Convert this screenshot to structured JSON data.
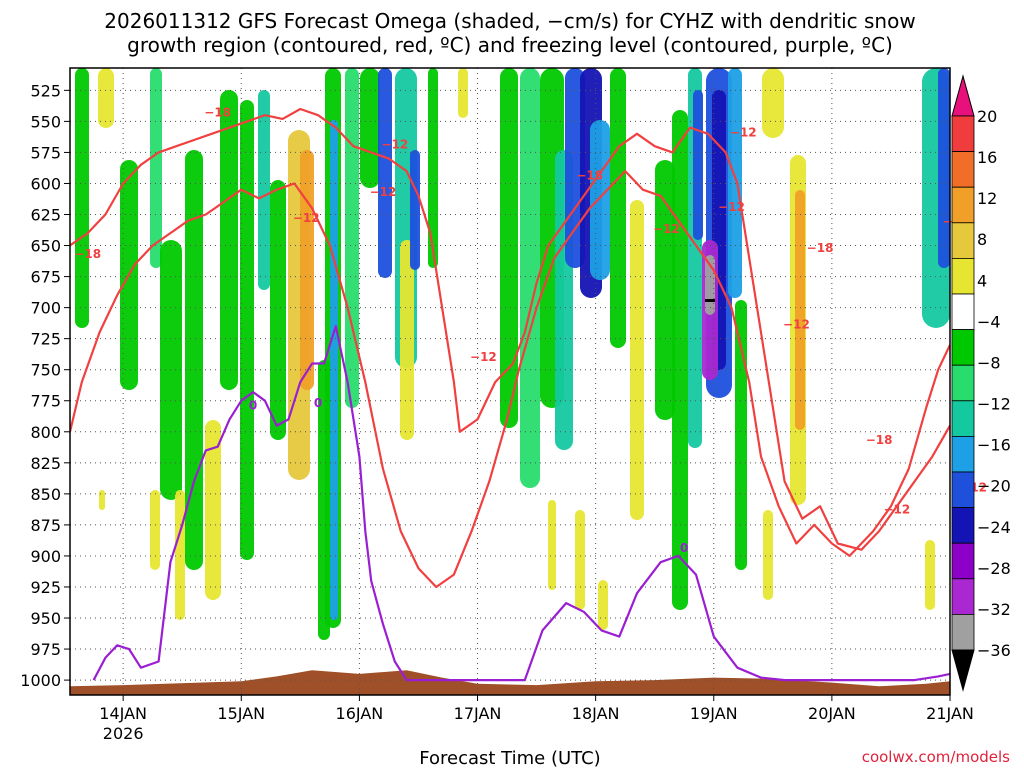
{
  "chart_data": {
    "type": "heatmap",
    "title_lines": [
      "2026011312 GFS Forecast Omega (shaded, −cm/s) for CYHZ with dendritic snow",
      "growth region (contoured, red, ºC) and freezing level (contoured, purple, ºC)"
    ],
    "xlabel": "Forecast Time (UTC)",
    "credit": "coolwx.com/models",
    "x_ticks": [
      {
        "label": "14JAN",
        "sub": "2026",
        "day": 14
      },
      {
        "label": "15JAN",
        "sub": "",
        "day": 15
      },
      {
        "label": "16JAN",
        "sub": "",
        "day": 16
      },
      {
        "label": "17JAN",
        "sub": "",
        "day": 17
      },
      {
        "label": "18JAN",
        "sub": "",
        "day": 18
      },
      {
        "label": "19JAN",
        "sub": "",
        "day": 19
      },
      {
        "label": "20JAN",
        "sub": "",
        "day": 20
      },
      {
        "label": "21JAN",
        "sub": "",
        "day": 21
      }
    ],
    "x_range_days": [
      13.55,
      21.0
    ],
    "y_ticks": [
      "525",
      "550",
      "575",
      "600",
      "625",
      "650",
      "675",
      "700",
      "725",
      "750",
      "775",
      "800",
      "825",
      "850",
      "875",
      "900",
      "925",
      "950",
      "975",
      "1000"
    ],
    "y_range_hpa": [
      507,
      1012
    ],
    "grid": true,
    "colorbar": {
      "labels": [
        "20",
        "16",
        "12",
        "8",
        "4",
        "−4",
        "−8",
        "−12",
        "−16",
        "−20",
        "−24",
        "−28",
        "−32",
        "−36"
      ],
      "colors": [
        "#e8117c",
        "#f03c3c",
        "#f06e28",
        "#f0a028",
        "#e6c83c",
        "#e6e632",
        "#ffffff",
        "#00c800",
        "#28dc6e",
        "#14c8a0",
        "#1ea0e6",
        "#1e50dc",
        "#1414b4",
        "#8c00c8",
        "#aa28d2",
        "#a0a0a0",
        "#000000"
      ]
    },
    "series": [
      {
        "name": "dendritic growth −12",
        "color": "#f04040",
        "points": [
          [
            13.55,
            650
          ],
          [
            13.7,
            640
          ],
          [
            13.85,
            625
          ],
          [
            14.0,
            600
          ],
          [
            14.15,
            585
          ],
          [
            14.3,
            575
          ],
          [
            14.45,
            570
          ],
          [
            14.6,
            565
          ],
          [
            14.75,
            560
          ],
          [
            14.9,
            555
          ],
          [
            15.05,
            550
          ],
          [
            15.2,
            545
          ],
          [
            15.35,
            548
          ],
          [
            15.5,
            540
          ],
          [
            15.65,
            545
          ],
          [
            15.8,
            555
          ],
          [
            15.95,
            570
          ],
          [
            16.1,
            575
          ],
          [
            16.25,
            580
          ],
          [
            16.4,
            590
          ],
          [
            16.5,
            610
          ],
          [
            16.6,
            640
          ],
          [
            16.7,
            700
          ],
          [
            16.8,
            760
          ],
          [
            16.85,
            800
          ],
          [
            17.0,
            790
          ],
          [
            17.15,
            760
          ],
          [
            17.3,
            745
          ],
          [
            17.4,
            720
          ],
          [
            17.5,
            680
          ],
          [
            17.6,
            650
          ],
          [
            17.75,
            630
          ],
          [
            17.9,
            610
          ],
          [
            18.05,
            590
          ],
          [
            18.2,
            570
          ],
          [
            18.35,
            560
          ],
          [
            18.5,
            570
          ],
          [
            18.65,
            575
          ],
          [
            18.8,
            555
          ],
          [
            18.95,
            560
          ],
          [
            19.1,
            575
          ],
          [
            19.2,
            600
          ],
          [
            19.3,
            660
          ],
          [
            19.4,
            720
          ],
          [
            19.5,
            780
          ],
          [
            19.6,
            840
          ],
          [
            19.75,
            870
          ],
          [
            19.9,
            860
          ],
          [
            20.05,
            890
          ],
          [
            20.25,
            895
          ],
          [
            20.4,
            880
          ],
          [
            20.55,
            860
          ],
          [
            20.7,
            840
          ],
          [
            20.85,
            820
          ],
          [
            21.0,
            795
          ]
        ]
      },
      {
        "name": "dendritic growth −18",
        "color": "#f04040",
        "points": [
          [
            13.55,
            800
          ],
          [
            13.65,
            760
          ],
          [
            13.8,
            720
          ],
          [
            13.95,
            690
          ],
          [
            14.1,
            665
          ],
          [
            14.25,
            650
          ],
          [
            14.4,
            640
          ],
          [
            14.55,
            630
          ],
          [
            14.7,
            625
          ],
          [
            14.85,
            615
          ],
          [
            15.0,
            605
          ],
          [
            15.15,
            612
          ],
          [
            15.3,
            605
          ],
          [
            15.45,
            600
          ],
          [
            15.6,
            620
          ],
          [
            15.75,
            650
          ],
          [
            15.9,
            700
          ],
          [
            16.05,
            760
          ],
          [
            16.2,
            830
          ],
          [
            16.35,
            880
          ],
          [
            16.5,
            910
          ],
          [
            16.65,
            925
          ],
          [
            16.8,
            915
          ],
          [
            16.95,
            880
          ],
          [
            17.1,
            840
          ],
          [
            17.25,
            790
          ],
          [
            17.35,
            750
          ],
          [
            17.5,
            700
          ],
          [
            17.65,
            660
          ],
          [
            17.8,
            640
          ],
          [
            17.95,
            620
          ],
          [
            18.1,
            605
          ],
          [
            18.25,
            590
          ],
          [
            18.4,
            605
          ],
          [
            18.55,
            610
          ],
          [
            18.7,
            630
          ],
          [
            18.85,
            650
          ],
          [
            19.0,
            670
          ],
          [
            19.15,
            700
          ],
          [
            19.3,
            760
          ],
          [
            19.4,
            820
          ],
          [
            19.55,
            860
          ],
          [
            19.7,
            890
          ],
          [
            19.85,
            875
          ],
          [
            20.0,
            890
          ],
          [
            20.15,
            900
          ],
          [
            20.35,
            880
          ],
          [
            20.5,
            860
          ],
          [
            20.65,
            830
          ],
          [
            20.8,
            780
          ],
          [
            20.9,
            750
          ],
          [
            21.0,
            730
          ]
        ]
      },
      {
        "name": "freezing level 0",
        "color": "#9b1fd2",
        "points": [
          [
            13.75,
            1000
          ],
          [
            13.85,
            982
          ],
          [
            13.95,
            972
          ],
          [
            14.05,
            975
          ],
          [
            14.15,
            990
          ],
          [
            14.3,
            985
          ],
          [
            14.4,
            905
          ],
          [
            14.5,
            875
          ],
          [
            14.6,
            840
          ],
          [
            14.7,
            815
          ],
          [
            14.8,
            812
          ],
          [
            14.9,
            790
          ],
          [
            15.0,
            775
          ],
          [
            15.1,
            768
          ],
          [
            15.2,
            775
          ],
          [
            15.3,
            795
          ],
          [
            15.4,
            790
          ],
          [
            15.5,
            760
          ],
          [
            15.6,
            745
          ],
          [
            15.7,
            745
          ],
          [
            15.8,
            715
          ],
          [
            15.9,
            760
          ],
          [
            16.0,
            820
          ],
          [
            16.05,
            880
          ],
          [
            16.1,
            920
          ],
          [
            16.2,
            955
          ],
          [
            16.3,
            985
          ],
          [
            16.4,
            1000
          ],
          [
            17.4,
            1000
          ],
          [
            17.55,
            960
          ],
          [
            17.75,
            938
          ],
          [
            17.9,
            945
          ],
          [
            18.05,
            960
          ],
          [
            18.2,
            965
          ],
          [
            18.35,
            930
          ],
          [
            18.55,
            905
          ],
          [
            18.7,
            900
          ],
          [
            18.85,
            915
          ],
          [
            19.0,
            965
          ],
          [
            19.2,
            990
          ],
          [
            19.4,
            998
          ],
          [
            19.6,
            1000
          ],
          [
            20.7,
            1000
          ],
          [
            20.9,
            997
          ],
          [
            21.0,
            995
          ]
        ]
      }
    ],
    "contour_labels": [
      {
        "text": "−18",
        "day": 13.7,
        "hpa": 660,
        "color": "#f04040"
      },
      {
        "text": "−18",
        "day": 14.8,
        "hpa": 546,
        "color": "#f04040"
      },
      {
        "text": "−12",
        "day": 15.55,
        "hpa": 631,
        "color": "#f04040"
      },
      {
        "text": "−12",
        "day": 16.3,
        "hpa": 572,
        "color": "#f04040"
      },
      {
        "text": "−12",
        "day": 16.2,
        "hpa": 610,
        "color": "#f04040"
      },
      {
        "text": "−12",
        "day": 17.05,
        "hpa": 743,
        "color": "#f04040"
      },
      {
        "text": "−18",
        "day": 17.95,
        "hpa": 597,
        "color": "#f04040"
      },
      {
        "text": "−12",
        "day": 18.6,
        "hpa": 640,
        "color": "#f04040"
      },
      {
        "text": "−12",
        "day": 19.25,
        "hpa": 562,
        "color": "#f04040"
      },
      {
        "text": "−12",
        "day": 19.15,
        "hpa": 622,
        "color": "#f04040"
      },
      {
        "text": "−18",
        "day": 19.9,
        "hpa": 655,
        "color": "#f04040"
      },
      {
        "text": "−12",
        "day": 19.7,
        "hpa": 717,
        "color": "#f04040"
      },
      {
        "text": "−18",
        "day": 20.4,
        "hpa": 810,
        "color": "#f04040"
      },
      {
        "text": "−12",
        "day": 20.55,
        "hpa": 866,
        "color": "#f04040"
      },
      {
        "text": "−18",
        "day": 21.05,
        "hpa": 634,
        "color": "#f04040"
      },
      {
        "text": "−12",
        "day": 21.2,
        "hpa": 848,
        "color": "#f04040"
      },
      {
        "text": "0",
        "day": 15.1,
        "hpa": 782,
        "color": "#9b1fd2"
      },
      {
        "text": "0",
        "day": 15.65,
        "hpa": 780,
        "color": "#9b1fd2"
      },
      {
        "text": "0",
        "day": 18.75,
        "hpa": 897,
        "color": "#9b1fd2"
      }
    ]
  }
}
